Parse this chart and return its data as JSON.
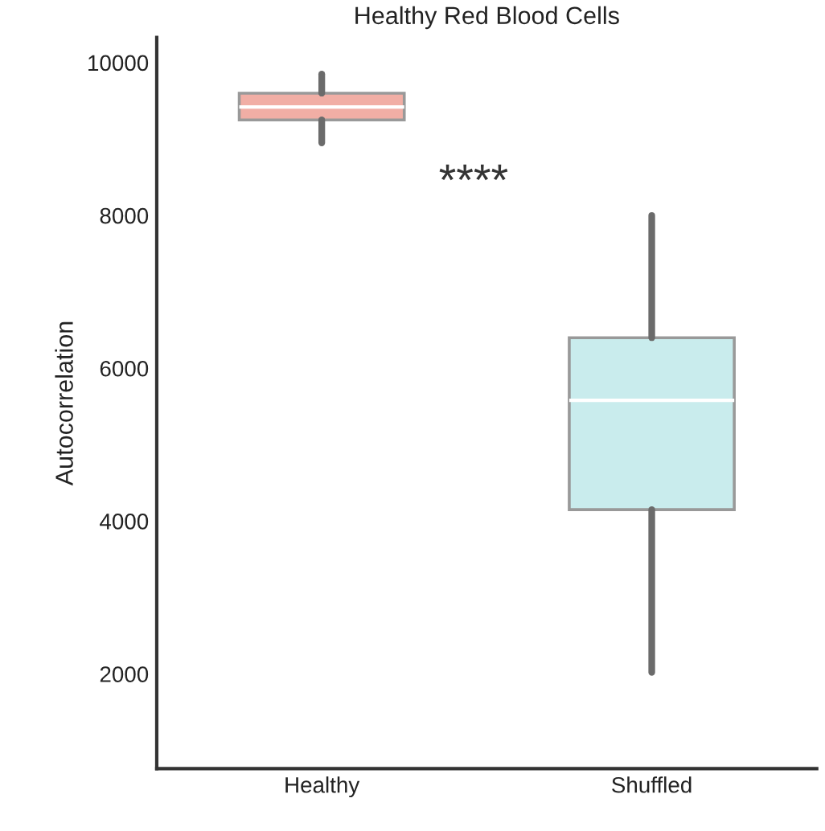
{
  "chart_data": {
    "type": "box",
    "title": "Healthy Red Blood Cells",
    "ylabel": "Autocorrelation",
    "categories": [
      "Healthy",
      "Shuffled"
    ],
    "boxes": [
      {
        "low": 8950,
        "q1": 9250,
        "median": 9420,
        "q3": 9600,
        "high": 9850
      },
      {
        "low": 2020,
        "q1": 4150,
        "median": 5580,
        "q3": 6400,
        "high": 8000
      }
    ],
    "colors": [
      "#f1aea5",
      "#c9eced"
    ],
    "ylim": [
      760,
      10330
    ],
    "yticks": [
      2000,
      4000,
      6000,
      8000,
      10000
    ],
    "annotations": [
      "****"
    ],
    "grid": false
  }
}
